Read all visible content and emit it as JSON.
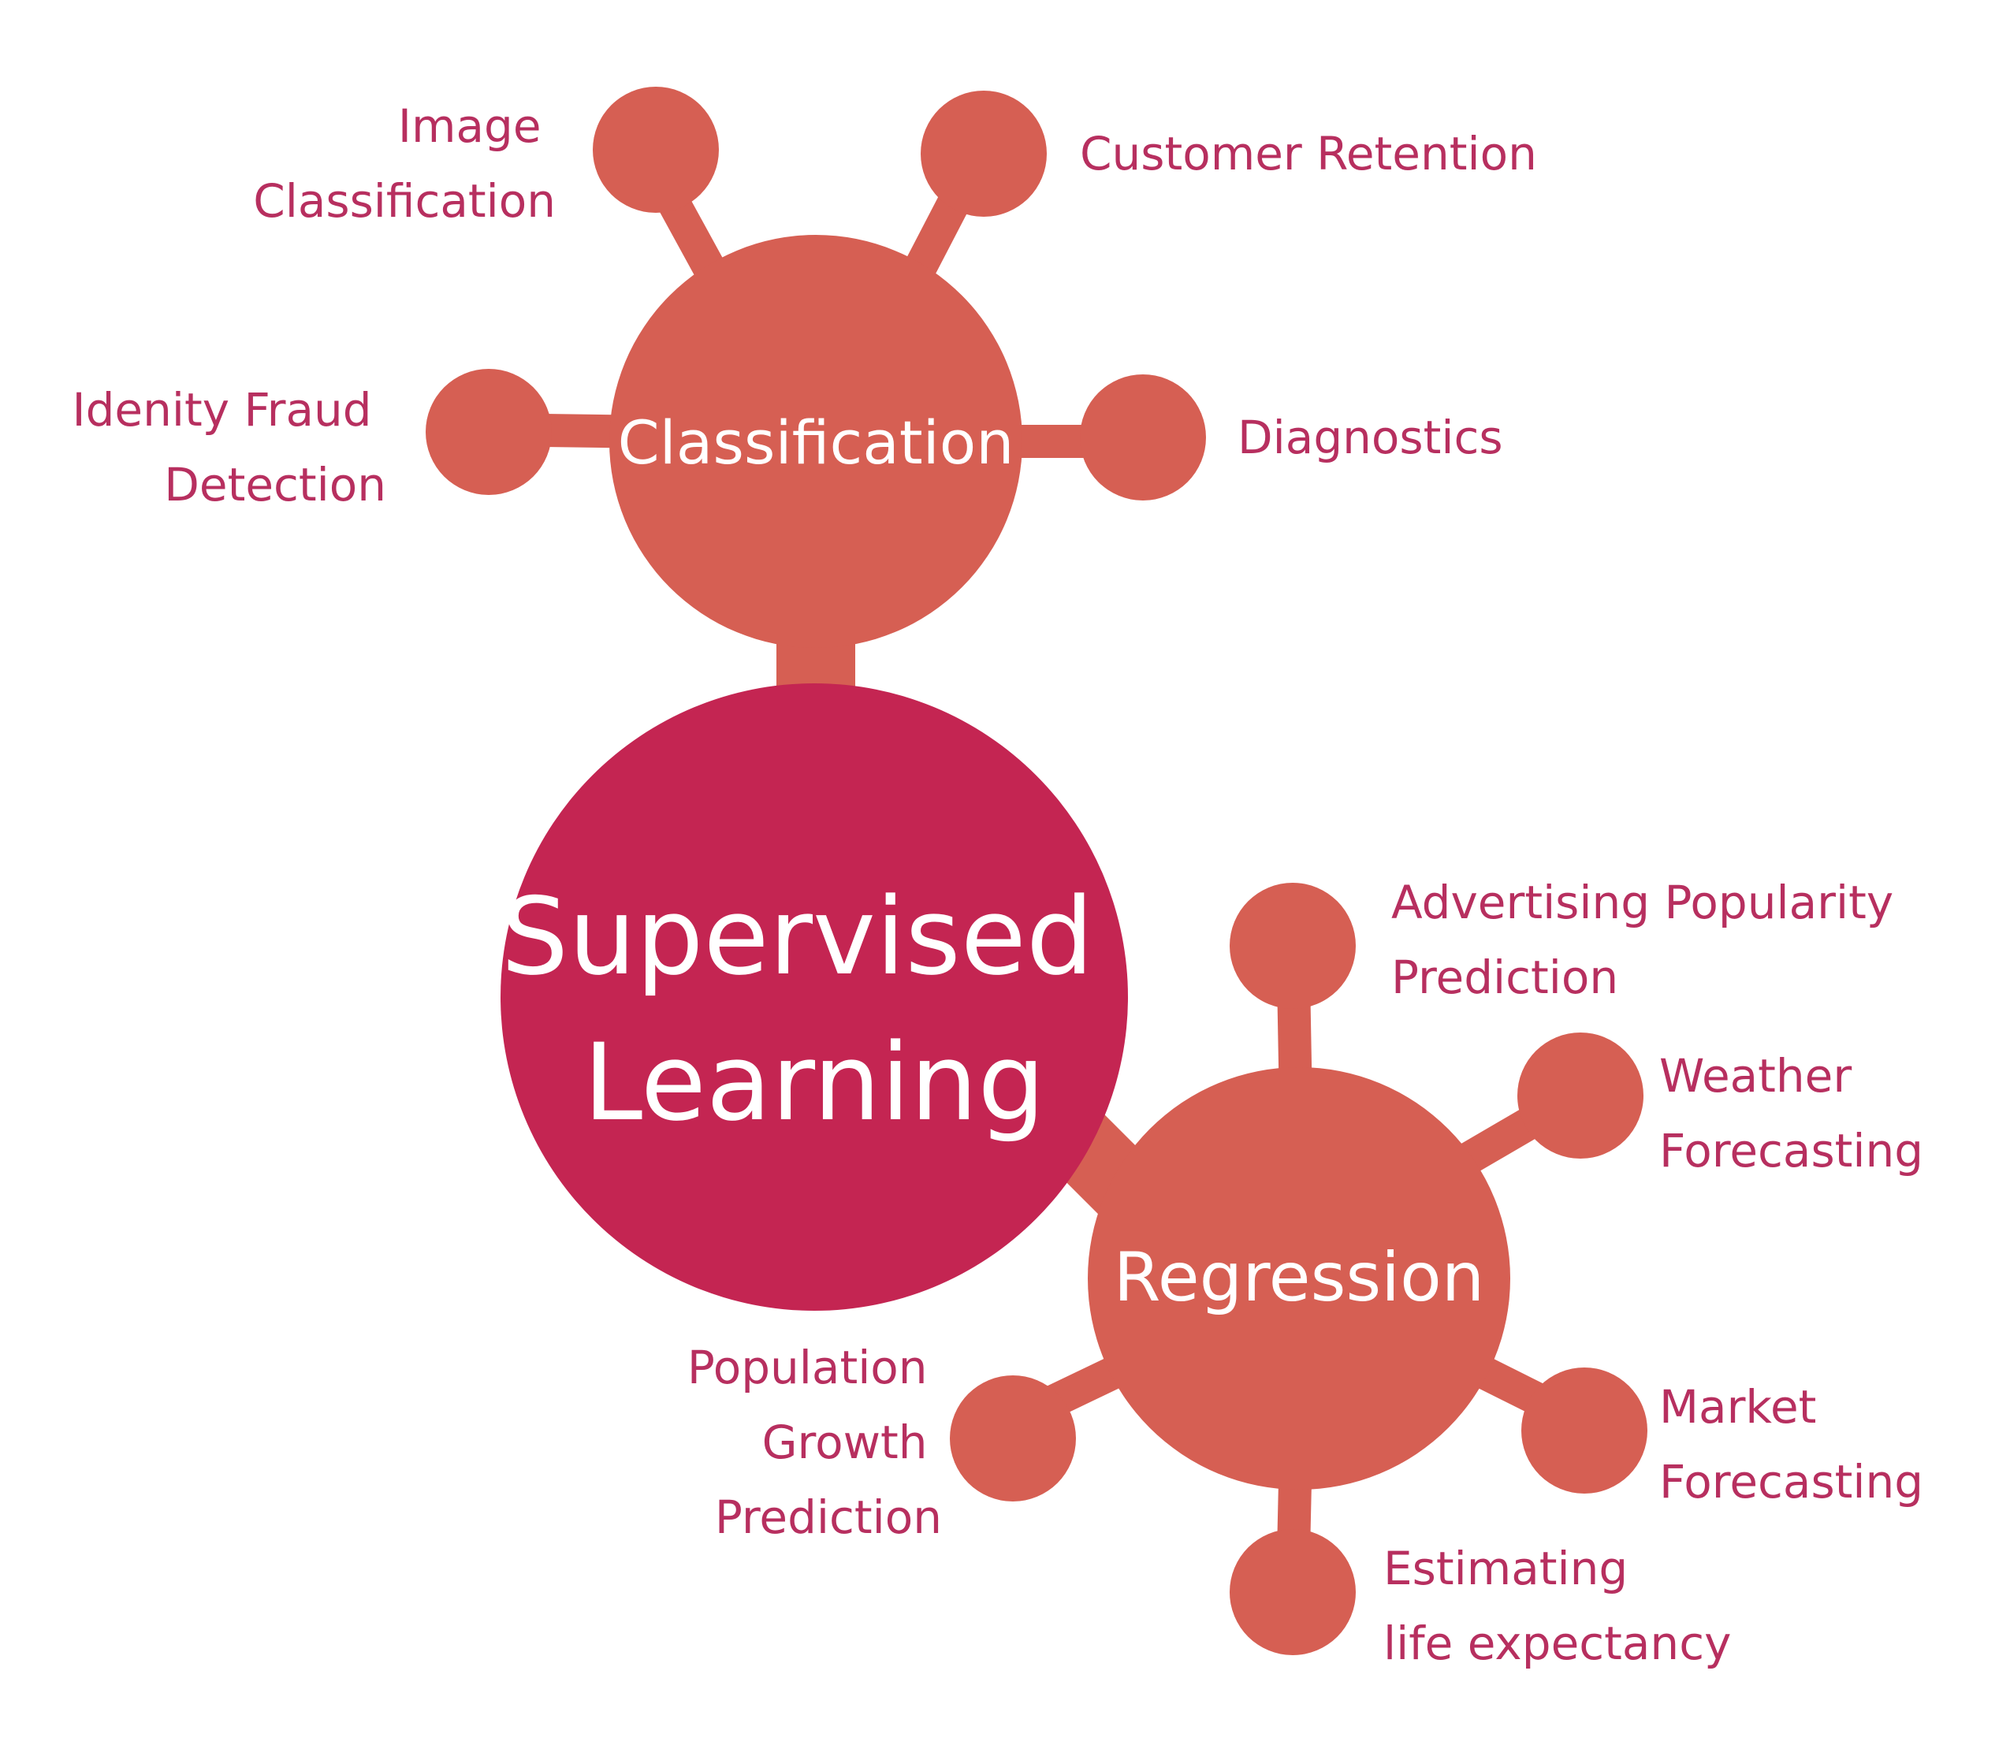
{
  "colors": {
    "center": "#c42552",
    "hub": "#d65f53",
    "label_text": "#b72f5f",
    "hub_text": "#ffffff",
    "background": "#ffffff"
  },
  "center": {
    "label_lines": [
      "Supervised",
      "Learning"
    ]
  },
  "classification": {
    "label": "Classification",
    "leaves": [
      {
        "lines": [
          "Image",
          "Classification"
        ]
      },
      {
        "lines": [
          "Customer Retention"
        ]
      },
      {
        "lines": [
          "Idenity Fraud",
          "Detection"
        ]
      },
      {
        "lines": [
          "Diagnostics"
        ]
      }
    ]
  },
  "regression": {
    "label": "Regression",
    "leaves": [
      {
        "lines": [
          "Advertising Popularity",
          "Prediction"
        ]
      },
      {
        "lines": [
          "Weather",
          "Forecasting"
        ]
      },
      {
        "lines": [
          "Market",
          "Forecasting"
        ]
      },
      {
        "lines": [
          "Estimating",
          "life expectancy"
        ]
      },
      {
        "lines": [
          "Population",
          "Growth",
          "Prediction"
        ]
      }
    ]
  }
}
